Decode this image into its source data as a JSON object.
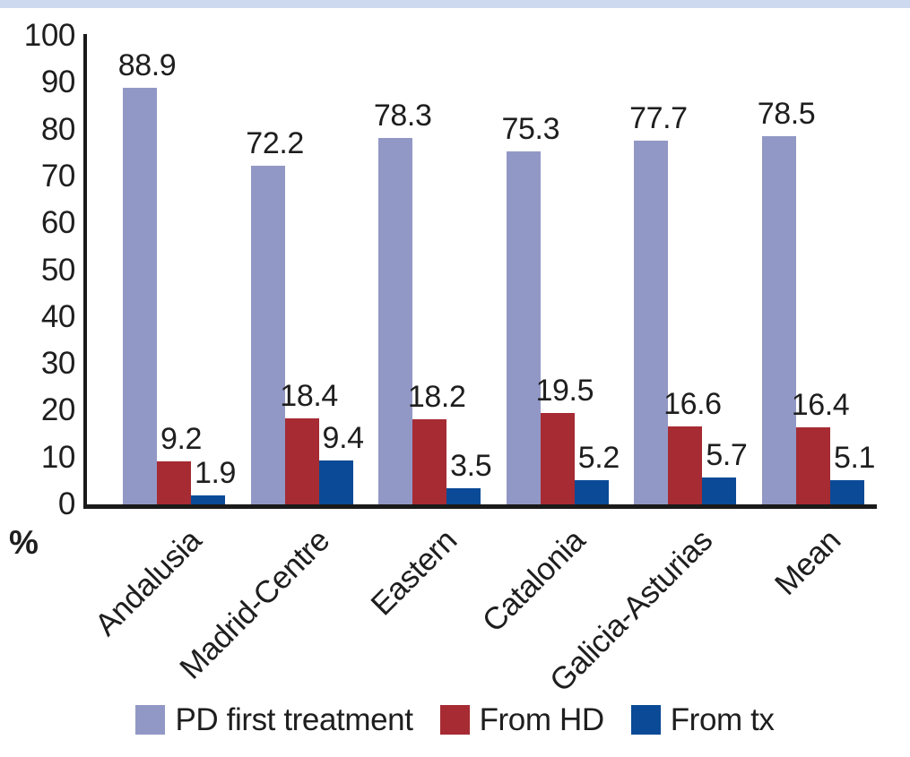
{
  "page": {
    "top_band_color": "#ccd9ee",
    "background_color": "#ffffff",
    "axis_color": "#1a1a1a",
    "text_color": "#1e1e1e"
  },
  "chart_data": {
    "type": "bar",
    "title": "",
    "categories": [
      "Andalusia",
      "Madrid-Centre",
      "Eastern",
      "Catalonia",
      "Galicia-Asturias",
      "Mean"
    ],
    "series": [
      {
        "name": "PD first treatment",
        "color": "#9298c5",
        "values": [
          88.9,
          72.2,
          78.3,
          75.3,
          77.7,
          78.5
        ]
      },
      {
        "name": "From HD",
        "color": "#a62b33",
        "values": [
          9.2,
          18.4,
          18.2,
          19.5,
          16.6,
          16.4
        ]
      },
      {
        "name": "From tx",
        "color": "#0a4a96",
        "values": [
          1.9,
          9.4,
          3.5,
          5.2,
          5.7,
          5.1
        ]
      }
    ],
    "ylabel": "%",
    "xlabel": "",
    "ylim": [
      0,
      100
    ],
    "yticks": [
      0,
      10,
      20,
      30,
      40,
      50,
      60,
      70,
      80,
      90,
      100
    ],
    "grid": false,
    "value_labels_shown": true,
    "legend_position": "bottom",
    "legend_entries": [
      "PD first treatment",
      "From HD",
      "From tx"
    ]
  }
}
